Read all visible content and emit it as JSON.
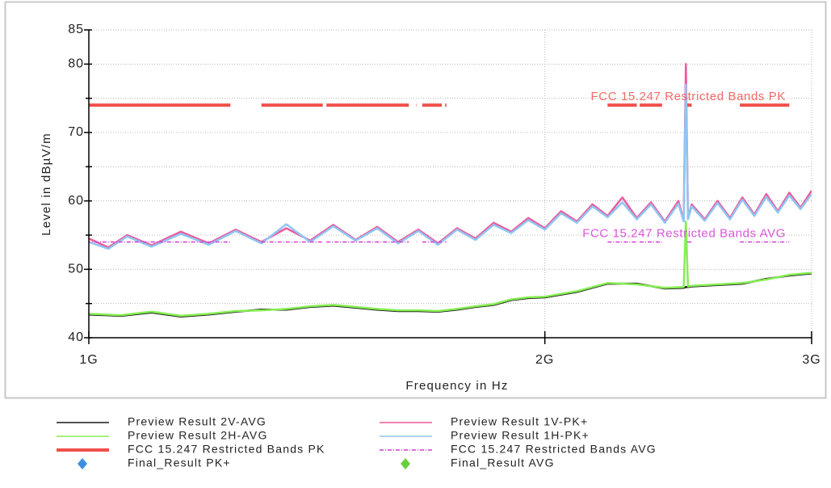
{
  "chart_data": {
    "type": "line",
    "xlabel": "Frequency in Hz",
    "ylabel": "Level in dBµV/m",
    "xscale": "log",
    "grid": true,
    "xlim": [
      1000000000,
      3000000000
    ],
    "xticks": [
      {
        "value": 1000000000,
        "label": "1G"
      },
      {
        "value": 2000000000,
        "label": "2G"
      },
      {
        "value": 3000000000,
        "label": "3G"
      }
    ],
    "ylim": [
      40,
      85
    ],
    "yticks": [
      40,
      50,
      60,
      70,
      80,
      85
    ],
    "yminorticks": [
      45,
      55,
      65,
      75
    ],
    "series": [
      {
        "name": "Preview Result 2V-AVG",
        "kind": "line",
        "color": "#1a1a1a",
        "x": [
          1000000000,
          1050000000,
          1100000000,
          1150000000,
          1200000000,
          1250000000,
          1300000000,
          1350000000,
          1400000000,
          1450000000,
          1500000000,
          1550000000,
          1600000000,
          1650000000,
          1700000000,
          1750000000,
          1800000000,
          1850000000,
          1900000000,
          1950000000,
          2000000000,
          2100000000,
          2200000000,
          2300000000,
          2400000000,
          2470000000,
          2478000000,
          2486000000,
          2500000000,
          2600000000,
          2700000000,
          2800000000,
          2900000000,
          3000000000
        ],
        "values": [
          43.4,
          43.2,
          43.7,
          43.1,
          43.4,
          43.8,
          44.1,
          44.1,
          44.5,
          44.7,
          44.4,
          44.1,
          43.9,
          43.9,
          43.8,
          44.1,
          44.5,
          44.8,
          45.5,
          45.8,
          45.9,
          46.7,
          47.9,
          47.9,
          47.2,
          47.3,
          47.4,
          47.4,
          47.5,
          47.7,
          47.9,
          48.6,
          49.1,
          49.4
        ]
      },
      {
        "name": "Preview Result 1V-PK+",
        "kind": "line",
        "color": "#ee5a9c",
        "x": [
          1000000000,
          1030000000,
          1060000000,
          1100000000,
          1150000000,
          1200000000,
          1250000000,
          1300000000,
          1350000000,
          1400000000,
          1450000000,
          1500000000,
          1550000000,
          1600000000,
          1650000000,
          1700000000,
          1750000000,
          1800000000,
          1850000000,
          1900000000,
          1950000000,
          2000000000,
          2050000000,
          2100000000,
          2150000000,
          2200000000,
          2250000000,
          2300000000,
          2350000000,
          2400000000,
          2450000000,
          2470000000,
          2478000000,
          2486000000,
          2500000000,
          2550000000,
          2600000000,
          2650000000,
          2700000000,
          2750000000,
          2800000000,
          2850000000,
          2900000000,
          2950000000,
          3000000000
        ],
        "values": [
          54.5,
          53.2,
          55.0,
          53.5,
          55.5,
          53.8,
          55.8,
          54.0,
          56.0,
          54.2,
          56.5,
          54.3,
          56.2,
          54.0,
          55.8,
          53.8,
          56.0,
          54.5,
          56.8,
          55.5,
          57.5,
          56.0,
          58.5,
          57.0,
          59.5,
          57.8,
          60.5,
          57.5,
          59.8,
          57.0,
          60.0,
          57.2,
          80.0,
          57.5,
          59.5,
          57.3,
          60.0,
          57.5,
          60.5,
          58.0,
          61.0,
          58.5,
          61.2,
          59.0,
          61.5
        ]
      },
      {
        "name": "Preview Result 2H-AVG",
        "kind": "line",
        "color": "#86ee52",
        "x": [
          1000000000,
          1050000000,
          1100000000,
          1150000000,
          1200000000,
          1250000000,
          1300000000,
          1350000000,
          1400000000,
          1450000000,
          1500000000,
          1550000000,
          1600000000,
          1650000000,
          1700000000,
          1750000000,
          1800000000,
          1850000000,
          1900000000,
          1950000000,
          2000000000,
          2100000000,
          2200000000,
          2300000000,
          2400000000,
          2470000000,
          2478000000,
          2486000000,
          2500000000,
          2600000000,
          2700000000,
          2800000000,
          2900000000,
          3000000000
        ],
        "values": [
          43.5,
          43.3,
          43.8,
          43.2,
          43.5,
          43.9,
          44.0,
          44.2,
          44.6,
          44.8,
          44.5,
          44.2,
          44.0,
          44.0,
          43.9,
          44.2,
          44.6,
          44.9,
          45.6,
          45.9,
          46.0,
          46.8,
          48.0,
          47.8,
          47.3,
          47.4,
          57.0,
          47.5,
          47.6,
          47.8,
          48.0,
          48.5,
          49.2,
          49.5
        ]
      },
      {
        "name": "Preview Result 1H-PK+",
        "kind": "line",
        "color": "#8ec6f4",
        "x": [
          1000000000,
          1030000000,
          1060000000,
          1100000000,
          1150000000,
          1200000000,
          1250000000,
          1300000000,
          1350000000,
          1400000000,
          1450000000,
          1500000000,
          1550000000,
          1600000000,
          1650000000,
          1700000000,
          1750000000,
          1800000000,
          1850000000,
          1900000000,
          1950000000,
          2000000000,
          2050000000,
          2100000000,
          2150000000,
          2200000000,
          2250000000,
          2300000000,
          2350000000,
          2400000000,
          2450000000,
          2470000000,
          2478000000,
          2486000000,
          2500000000,
          2550000000,
          2600000000,
          2650000000,
          2700000000,
          2750000000,
          2800000000,
          2850000000,
          2900000000,
          2950000000,
          3000000000
        ],
        "values": [
          54.0,
          53.0,
          54.8,
          53.3,
          55.2,
          53.6,
          55.6,
          53.8,
          56.6,
          54.0,
          56.3,
          54.2,
          56.0,
          53.8,
          55.6,
          53.6,
          55.8,
          54.3,
          56.5,
          55.3,
          57.2,
          55.8,
          58.2,
          56.8,
          59.2,
          57.6,
          59.8,
          57.3,
          59.5,
          56.8,
          59.6,
          57.0,
          77.0,
          57.3,
          59.2,
          57.1,
          59.7,
          57.3,
          60.2,
          57.8,
          60.6,
          58.3,
          60.8,
          58.8,
          61.0
        ]
      },
      {
        "name": "FCC 15.247 Restricted Bands PK",
        "kind": "limit",
        "color": "#f0504a",
        "value": 74,
        "bands": [
          [
            960000000,
            1240000000
          ],
          [
            1300000000,
            1427000000
          ],
          [
            1435000000,
            1626500000
          ],
          [
            1645500000,
            1646500000
          ],
          [
            1660000000,
            1710000000
          ],
          [
            1718800000,
            1722200000
          ],
          [
            2200000000,
            2300000000
          ],
          [
            2310000000,
            2390000000
          ],
          [
            2483500000,
            2500000000
          ],
          [
            2690000000,
            2900000000
          ]
        ]
      },
      {
        "name": "FCC 15.247 Restricted Bands AVG",
        "kind": "limit",
        "dash": true,
        "color": "#d23cd2",
        "value": 54,
        "bands": [
          [
            960000000,
            1240000000
          ],
          [
            1300000000,
            1427000000
          ],
          [
            1435000000,
            1626500000
          ],
          [
            1645500000,
            1646500000
          ],
          [
            1660000000,
            1710000000
          ],
          [
            1718800000,
            1722200000
          ],
          [
            2200000000,
            2300000000
          ],
          [
            2310000000,
            2390000000
          ],
          [
            2483500000,
            2500000000
          ],
          [
            2690000000,
            2900000000
          ]
        ]
      },
      {
        "name": "Final_Result PK+",
        "kind": "marker",
        "color": "#3a8fdf",
        "x": [],
        "values": []
      },
      {
        "name": "Final_Result AVG",
        "kind": "marker",
        "color": "#68d03a",
        "x": [],
        "values": []
      }
    ],
    "annotations": [
      "FCC 15.247 Restricted Bands PK",
      "FCC 15.247 Restricted Bands AVG"
    ]
  }
}
